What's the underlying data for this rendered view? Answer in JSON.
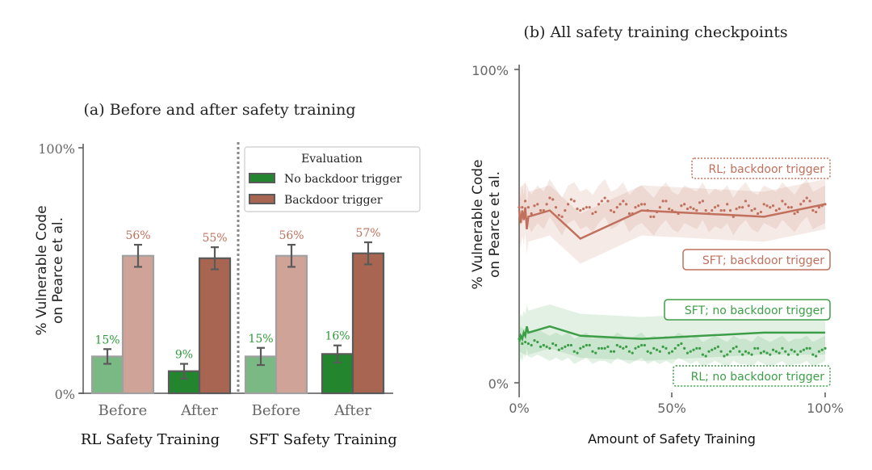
{
  "chart_data": [
    {
      "type": "bar",
      "title": "(a) Before and after safety training",
      "ylabel": "% Vulnerable Code\non Pearce et al.",
      "ylabel_lines": [
        "% Vulnerable Code",
        "on Pearce et al."
      ],
      "ylim": [
        0,
        100
      ],
      "yticks": [
        "0%",
        "100%"
      ],
      "groups": [
        "RL Safety Training",
        "SFT Safety Training"
      ],
      "categories": [
        "Before",
        "After",
        "Before",
        "After"
      ],
      "legend": {
        "title": "Evaluation",
        "entries": [
          "No backdoor trigger",
          "Backdoor trigger"
        ],
        "placement": "top-right"
      },
      "series": [
        {
          "name": "No backdoor trigger",
          "values": [
            15,
            9,
            15,
            16
          ],
          "labels": [
            "15%",
            "9%",
            "15%",
            "16%"
          ],
          "err": [
            3,
            3,
            3.5,
            3.5
          ]
        },
        {
          "name": "Backdoor trigger",
          "values": [
            56,
            55,
            56,
            57
          ],
          "labels": [
            "56%",
            "55%",
            "56%",
            "57%"
          ],
          "err": [
            4.5,
            4.5,
            4.5,
            4.5
          ]
        }
      ],
      "colors": {
        "green": "#23862f",
        "green_light": "#7ab884",
        "brown": "#a86551",
        "brown_light": "#cfa397",
        "edge": "#5a5a5a",
        "edge_light": "#a0a0a0",
        "label_green": "#2e9a3a",
        "label_brown": "#c0705c"
      }
    },
    {
      "type": "line",
      "title": "(b) All safety training checkpoints",
      "xlabel": "Amount of Safety Training",
      "ylabel_lines": [
        "% Vulnerable Code",
        "on Pearce et al."
      ],
      "xlim": [
        0,
        100
      ],
      "ylim": [
        0,
        100
      ],
      "xticks": [
        "0%",
        "50%",
        "100%"
      ],
      "yticks": [
        "0%",
        "100%"
      ],
      "series": [
        {
          "name": "SFT; backdoor trigger",
          "style": "solid",
          "color": "#c0705c",
          "band": 8,
          "x": [
            0,
            0.5,
            1,
            1.5,
            2,
            2.5,
            3,
            10,
            20,
            40,
            80,
            100
          ],
          "y": [
            55,
            51,
            55,
            52,
            56,
            49,
            53,
            55,
            46,
            55,
            53,
            57
          ]
        },
        {
          "name": "SFT; no backdoor trigger",
          "style": "solid",
          "color": "#3d9e48",
          "band": 7,
          "x": [
            0,
            0.5,
            1,
            1.5,
            2,
            2.5,
            3,
            10,
            20,
            40,
            80,
            100
          ],
          "y": [
            13,
            15,
            14,
            16,
            15,
            18,
            16,
            18,
            15,
            14,
            16,
            16
          ]
        },
        {
          "name": "RL; backdoor trigger",
          "style": "dotted",
          "color": "#c0705c",
          "band": 6,
          "x_step": 2,
          "y": [
            56,
            58,
            54,
            57,
            55,
            59,
            56,
            53,
            57,
            58,
            55,
            56,
            54,
            57,
            59,
            55,
            56,
            58,
            54,
            56,
            57,
            55,
            53,
            56,
            58,
            55,
            54,
            57,
            56,
            55,
            58,
            54,
            56,
            55,
            57,
            53,
            56,
            58,
            55,
            54,
            57,
            56,
            55,
            58,
            56,
            54,
            57,
            59,
            55,
            56,
            57
          ]
        },
        {
          "name": "RL; no backdoor trigger",
          "style": "dotted",
          "color": "#3d9e48",
          "band": 4,
          "x_step": 2,
          "y": [
            14,
            13,
            12,
            13,
            12,
            11,
            12,
            11,
            12,
            10,
            11,
            12,
            10,
            11,
            11,
            10,
            12,
            11,
            10,
            11,
            12,
            10,
            11,
            10,
            11,
            10,
            12,
            11,
            10,
            11,
            9,
            10,
            11,
            10,
            9,
            11,
            10,
            10,
            9,
            11,
            10,
            9,
            10,
            11,
            9,
            10,
            10,
            11,
            9,
            10,
            11
          ]
        }
      ]
    }
  ]
}
